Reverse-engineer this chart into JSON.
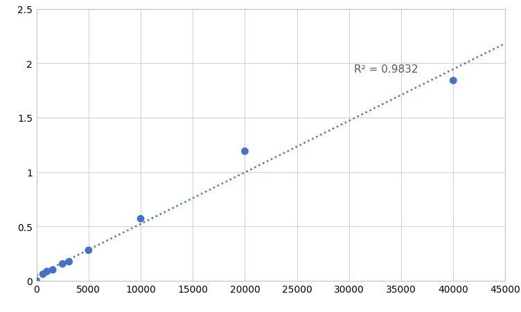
{
  "x": [
    0,
    625,
    1000,
    1563,
    2500,
    3125,
    5000,
    10000,
    20000,
    40000
  ],
  "y": [
    0.0,
    0.06,
    0.085,
    0.1,
    0.155,
    0.175,
    0.28,
    0.57,
    1.19,
    1.84
  ],
  "r_squared_text": "R² = 0.9832",
  "r_squared_x": 30500,
  "r_squared_y": 1.95,
  "dot_color": "#4472C4",
  "dot_size": 60,
  "line_color": "#4472C4",
  "line_width": 1.8,
  "xlim": [
    0,
    45000
  ],
  "ylim": [
    0,
    2.5
  ],
  "xticks": [
    0,
    5000,
    10000,
    15000,
    20000,
    25000,
    30000,
    35000,
    40000,
    45000
  ],
  "yticks": [
    0.0,
    0.5,
    1.0,
    1.5,
    2.0,
    2.5
  ],
  "grid_color": "#c8c8c8",
  "grid_linewidth": 0.6,
  "background_color": "#ffffff",
  "spine_color": "#c0c0c0",
  "font_size_ticks": 10,
  "font_size_annotation": 11,
  "annotation_color": "#595959"
}
